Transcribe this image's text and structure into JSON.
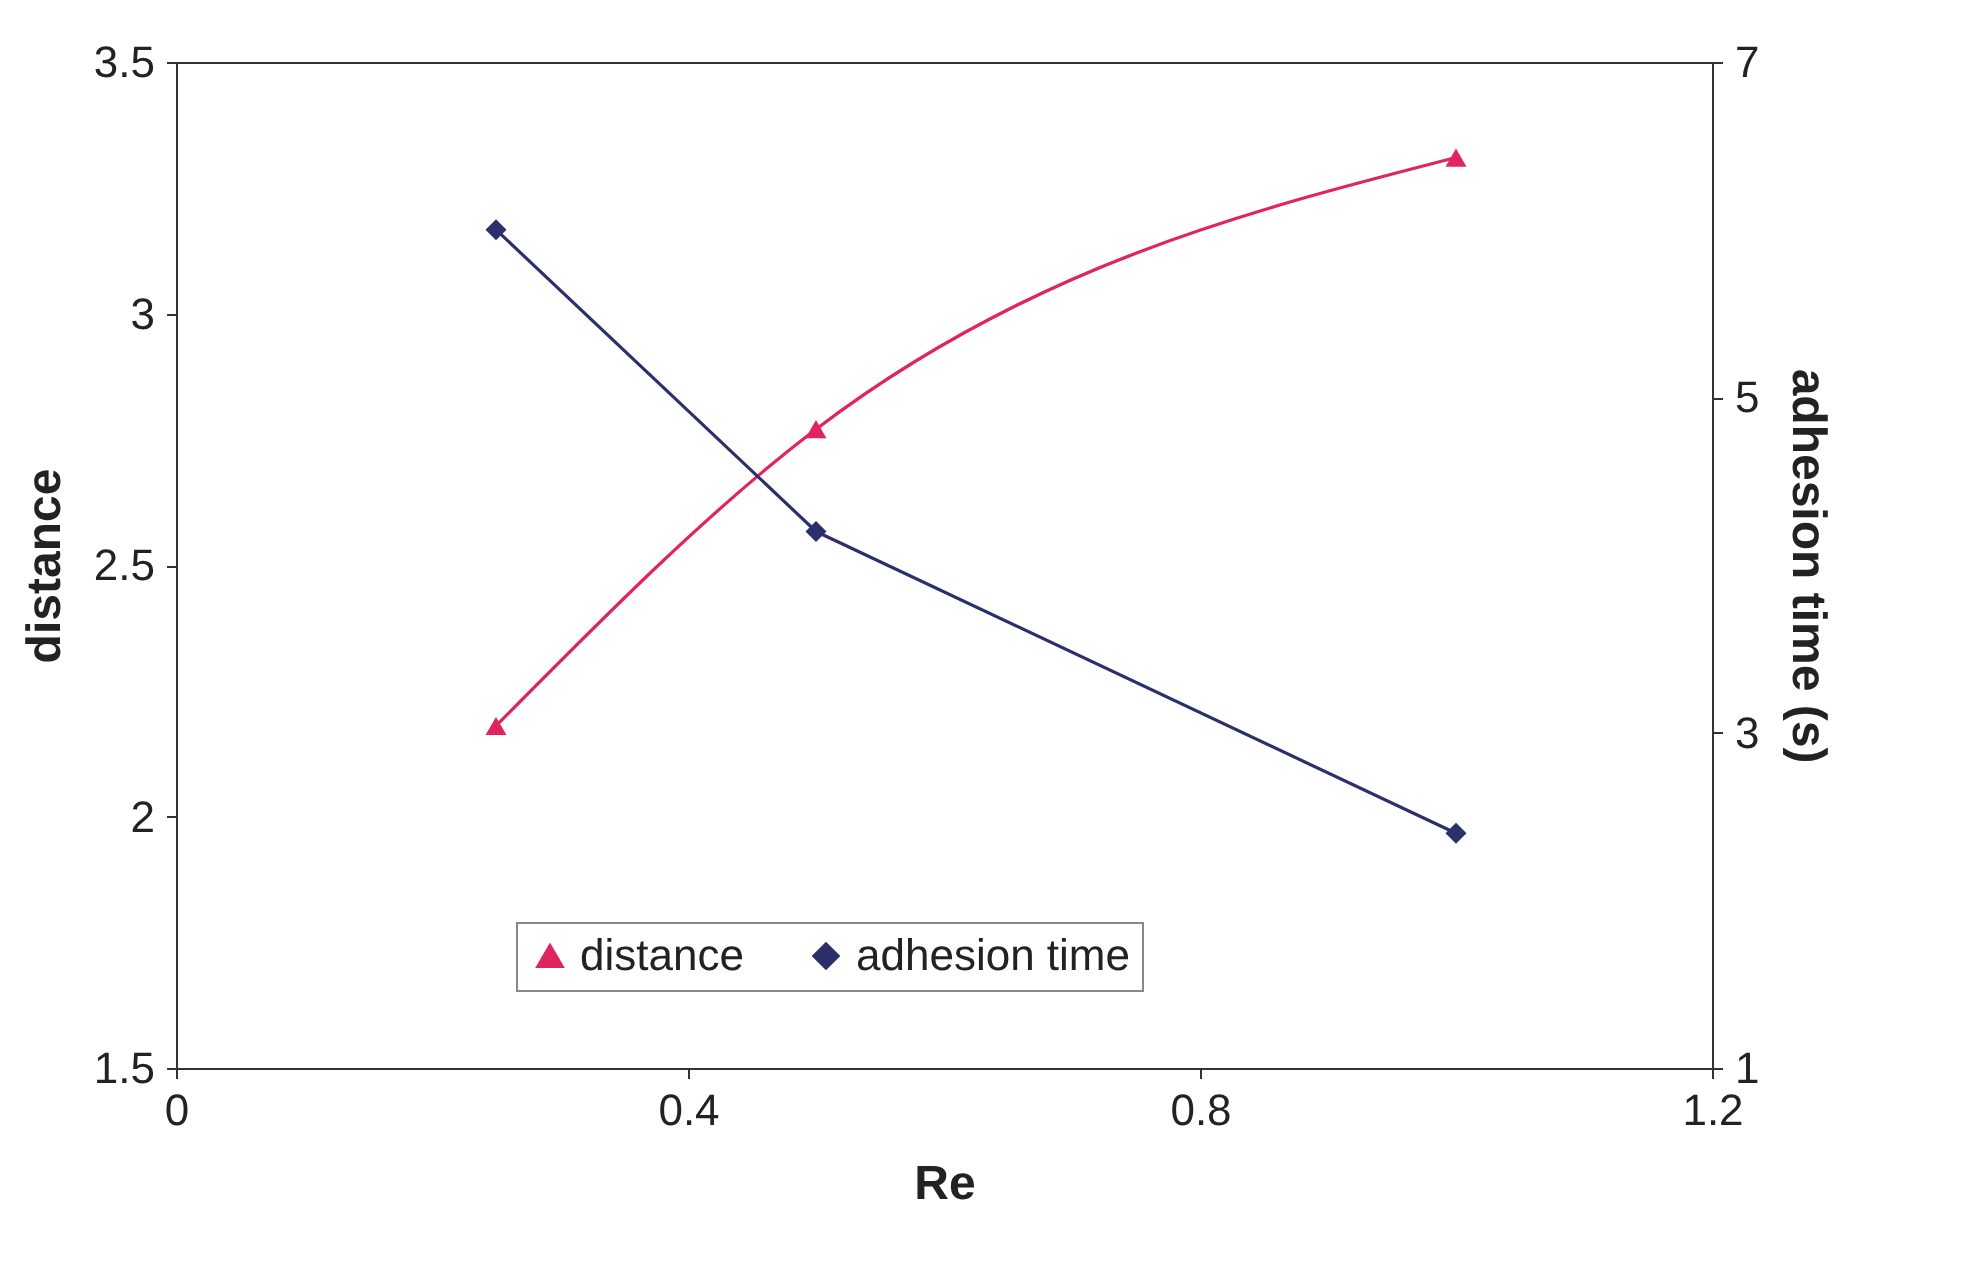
{
  "chart_data": {
    "type": "line",
    "xlabel": "Re",
    "ylabel": "distance",
    "y2label": "adhesion time (s)",
    "xlim": [
      0,
      1.2
    ],
    "xticks": [
      0,
      0.4,
      0.8,
      1.2
    ],
    "ylim": [
      1.5,
      3.5
    ],
    "yticks": [
      1.5,
      2,
      2.5,
      3,
      3.5
    ],
    "y2lim": [
      1,
      7
    ],
    "y2ticks": [
      1,
      3,
      5,
      7
    ],
    "x": [
      0.25,
      0.5,
      1.0
    ],
    "series": [
      {
        "name": "distance",
        "color": "#e0245e",
        "values": [
          2.18,
          2.77,
          3.31
        ],
        "marker": "triangle"
      },
      {
        "name": "adhesion time",
        "color": "#2b2f6b",
        "values": [
          6.0,
          4.2,
          2.4
        ],
        "marker": "diamond",
        "axis": "y2"
      }
    ],
    "grid": false,
    "legend": "bottom",
    "line_style": "solid"
  }
}
